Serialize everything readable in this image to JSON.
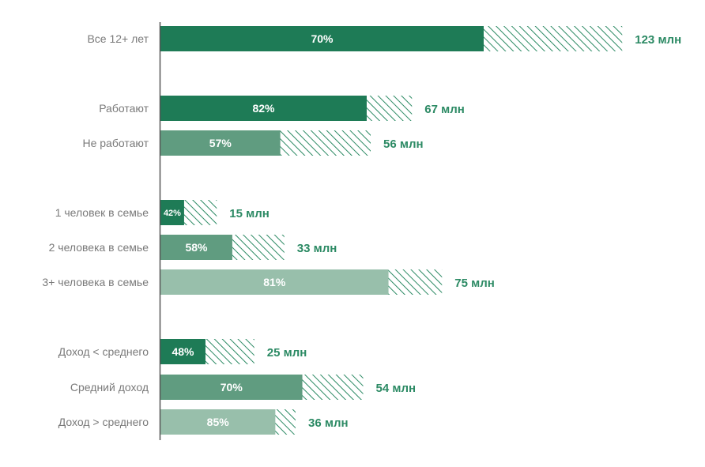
{
  "chart_data": {
    "type": "bar",
    "orientation": "horizontal",
    "stacked_hatched_remainder": true,
    "categories": [
      "Все 12+ лет",
      "Работают",
      "Не работают",
      "1 человек в семье",
      "2 человека в семье",
      "3+ человека в семье",
      "Доход < среднего",
      "Средний доход",
      "Доход > среднего"
    ],
    "groups": [
      [
        0
      ],
      [
        1,
        2
      ],
      [
        3,
        4,
        5
      ],
      [
        6,
        7,
        8
      ]
    ],
    "share_percent": [
      70,
      82,
      57,
      42,
      58,
      81,
      48,
      70,
      85
    ],
    "share_labels": [
      "70%",
      "82%",
      "57%",
      "42%",
      "58%",
      "81%",
      "48%",
      "70%",
      "85%"
    ],
    "total_mln": [
      123,
      67,
      56,
      15,
      33,
      75,
      25,
      54,
      36
    ],
    "total_labels": [
      "123 млн",
      "67 млн",
      "56 млн",
      "15 млн",
      "33 млн",
      "75 млн",
      "25 млн",
      "54 млн",
      "36 млн"
    ],
    "bar_colors": [
      "#1e7b56",
      "#1e7b56",
      "#609c80",
      "#1e7b56",
      "#609c80",
      "#98bfab",
      "#1e7b56",
      "#609c80",
      "#98bfab"
    ],
    "colors": {
      "accent": "#2c8a64",
      "hatch": "#2c8a64",
      "label": "#7a7a7a",
      "axis": "#555555"
    }
  }
}
